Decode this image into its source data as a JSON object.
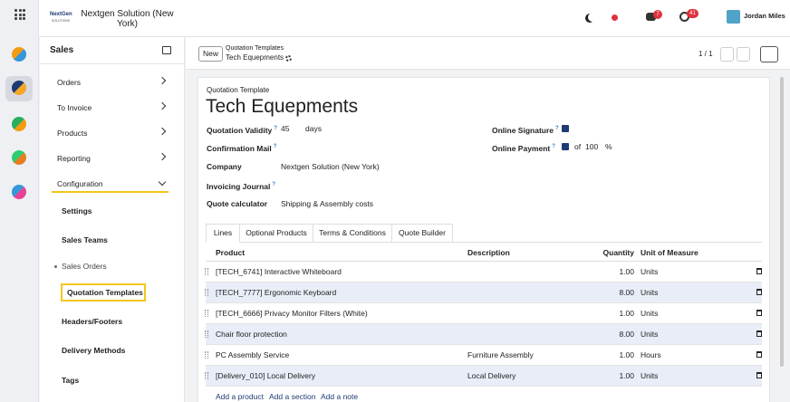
{
  "topbar": {
    "logo": "NextGen",
    "logo_sub": "SOLUTIONS",
    "company": "Nextgen Solution (New York)",
    "chat_badge": "7",
    "activity_badge": "41",
    "user": "Jordan Miles"
  },
  "sidebar": {
    "app": "Sales",
    "menu": [
      "Orders",
      "To Invoice",
      "Products",
      "Reporting",
      "Configuration"
    ],
    "submenu": [
      "Settings",
      "Sales Teams",
      "Sales Orders",
      "Quotation Templates",
      "Headers/Footers",
      "Delivery Methods",
      "Tags"
    ]
  },
  "control_panel": {
    "new_button": "New",
    "breadcrumb_parent": "Quotation Templates",
    "breadcrumb_current": "Tech Equepments",
    "pager": "1 / 1"
  },
  "form": {
    "label": "Quotation Template",
    "name": "Tech Equepments",
    "left_fields": [
      {
        "label": "Quotation Validity",
        "help": "?",
        "value": "45",
        "unit": "days"
      },
      {
        "label": "Confirmation Mail",
        "help": "?"
      },
      {
        "label": "Company",
        "value": "Nextgen Solution (New York)"
      },
      {
        "label": "Invoicing Journal",
        "help": "?"
      },
      {
        "label": "Quote calculator",
        "value": "Shipping & Assembly costs"
      }
    ],
    "right_fields": [
      {
        "label": "Online Signature",
        "help": "?"
      },
      {
        "label": "Online Payment",
        "help": "?",
        "prefix": "of",
        "value": "100",
        "unit": "%"
      }
    ]
  },
  "tabs": [
    "Lines",
    "Optional Products",
    "Terms & Conditions",
    "Quote Builder"
  ],
  "table": {
    "headers": [
      "Product",
      "Description",
      "Quantity",
      "Unit of Measure"
    ],
    "rows": [
      {
        "product": "[TECH_6741] Interactive Whiteboard",
        "quantity": "1.00",
        "unit": "Units"
      },
      {
        "product": "[TECH_7777] Ergonomic Keyboard",
        "quantity": "8.00",
        "unit": "Units"
      },
      {
        "product": "[TECH_6666] Privacy Monitor Filters (White)",
        "quantity": "1.00",
        "unit": "Units"
      },
      {
        "product": "Chair floor protection",
        "quantity": "8.00",
        "unit": "Units"
      },
      {
        "product": "PC Assembly Service",
        "description": "Furniture Assembly",
        "quantity": "1.00",
        "unit": "Hours"
      },
      {
        "product": "[Delivery_010] Local Delivery",
        "description": "Local Delivery",
        "quantity": "1.00",
        "unit": "Units"
      }
    ],
    "footer_links": [
      "Add a product",
      "Add a section",
      "Add a note"
    ]
  }
}
